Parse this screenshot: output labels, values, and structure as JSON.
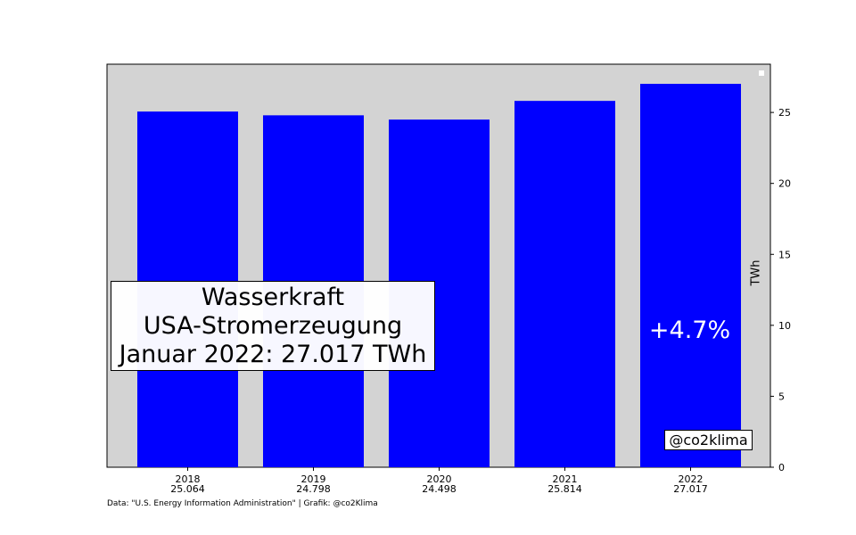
{
  "chart_data": {
    "type": "bar",
    "categories": [
      "2018",
      "2019",
      "2020",
      "2021",
      "2022"
    ],
    "value_labels": [
      "25.064",
      "24.798",
      "24.498",
      "25.814",
      "27.017"
    ],
    "values": [
      25.064,
      24.798,
      24.498,
      25.814,
      27.017
    ],
    "ylabel": "TWh",
    "ylim": [
      0,
      28.4
    ],
    "yticks": [
      0,
      5,
      10,
      15,
      20,
      25
    ],
    "y_axis_side": "right",
    "bar_color": "#0000ff",
    "plot_background": "#d3d3d3",
    "grid": false,
    "title_lines": [
      "Wasserkraft",
      "USA-Stromerzeugung",
      "Januar 2022: 27.017 TWh"
    ],
    "change_annotation": "+4.7%",
    "handle": "@co2klima",
    "source": "Data: \"U.S. Energy Information Administration\" | Grafik: @co2Klima"
  }
}
